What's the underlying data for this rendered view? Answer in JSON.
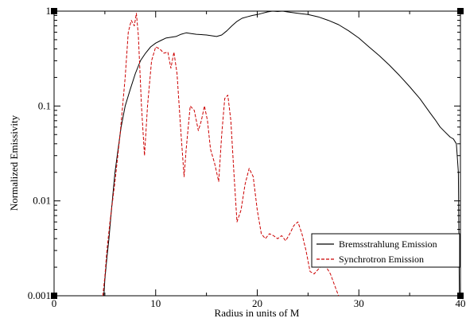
{
  "chart_data": {
    "type": "line",
    "title": "",
    "xlabel": "Radius in units of M",
    "ylabel": "Normalized Emissivity",
    "xlim": [
      0,
      40
    ],
    "ylim": [
      0.001,
      1
    ],
    "yscale": "log",
    "grid": false,
    "legend_position": "right",
    "x_ticks": [
      0,
      10,
      20,
      30,
      40
    ],
    "x_tick_labels": [
      "0",
      "10",
      "20",
      "30",
      "40"
    ],
    "y_ticks": [
      0.001,
      0.01,
      0.1,
      1
    ],
    "y_tick_labels": [
      "0.001",
      "0.01",
      "0.1",
      "1"
    ],
    "series": [
      {
        "name": "Bremsstrahlung Emission",
        "color": "#000000",
        "style": "solid",
        "x": [
          4.9,
          5.0,
          5.2,
          5.4,
          5.6,
          5.8,
          6.0,
          6.3,
          6.6,
          7.0,
          7.5,
          8.0,
          8.5,
          9.0,
          9.5,
          10.0,
          10.5,
          11.0,
          11.5,
          12.0,
          12.5,
          13.0,
          13.5,
          14.0,
          15.0,
          16.0,
          16.5,
          17.0,
          17.5,
          18.0,
          18.5,
          19.0,
          19.5,
          20.0,
          20.5,
          21.0,
          21.5,
          22.0,
          22.5,
          23.0,
          24.0,
          25.0,
          26.0,
          27.0,
          28.0,
          29.0,
          30.0,
          31.0,
          32.0,
          33.0,
          34.0,
          35.0,
          36.0,
          37.0,
          37.5,
          38.0,
          38.5,
          39.0,
          39.3,
          39.6,
          39.8,
          39.9
        ],
        "values": [
          0.001,
          0.0015,
          0.0025,
          0.004,
          0.007,
          0.012,
          0.02,
          0.035,
          0.06,
          0.1,
          0.15,
          0.22,
          0.3,
          0.36,
          0.42,
          0.46,
          0.49,
          0.52,
          0.53,
          0.54,
          0.57,
          0.59,
          0.58,
          0.57,
          0.56,
          0.54,
          0.56,
          0.62,
          0.7,
          0.78,
          0.84,
          0.87,
          0.9,
          0.92,
          0.95,
          0.98,
          1.0,
          0.99,
          1.0,
          0.98,
          0.95,
          0.92,
          0.87,
          0.8,
          0.72,
          0.62,
          0.52,
          0.42,
          0.34,
          0.27,
          0.21,
          0.16,
          0.12,
          0.085,
          0.072,
          0.06,
          0.053,
          0.047,
          0.045,
          0.04,
          0.02,
          0.001
        ]
      },
      {
        "name": "Synchrotron Emission",
        "color": "#cc0000",
        "style": "dashed",
        "x": [
          4.8,
          5.0,
          5.2,
          5.5,
          6.0,
          6.5,
          7.0,
          7.3,
          7.6,
          7.9,
          8.1,
          8.3,
          8.6,
          8.9,
          9.2,
          9.6,
          10.0,
          10.4,
          10.8,
          11.2,
          11.5,
          11.8,
          12.1,
          12.5,
          12.8,
          13.0,
          13.4,
          13.8,
          14.2,
          14.5,
          14.8,
          15.1,
          15.4,
          15.8,
          16.2,
          16.5,
          16.8,
          17.1,
          17.4,
          17.7,
          18.0,
          18.4,
          18.8,
          19.2,
          19.6,
          20.0,
          20.4,
          20.8,
          21.2,
          21.6,
          22.0,
          22.4,
          22.8,
          23.2,
          23.6,
          24.0,
          24.4,
          24.8,
          25.2,
          25.6,
          26.0,
          26.4,
          26.8,
          27.2,
          27.6,
          28.0
        ],
        "values": [
          0.001,
          0.0016,
          0.003,
          0.006,
          0.016,
          0.05,
          0.2,
          0.6,
          0.8,
          0.7,
          0.95,
          0.55,
          0.1,
          0.03,
          0.1,
          0.3,
          0.42,
          0.4,
          0.36,
          0.37,
          0.25,
          0.37,
          0.22,
          0.05,
          0.018,
          0.035,
          0.1,
          0.09,
          0.055,
          0.07,
          0.1,
          0.07,
          0.035,
          0.025,
          0.016,
          0.05,
          0.12,
          0.13,
          0.07,
          0.02,
          0.006,
          0.008,
          0.015,
          0.022,
          0.018,
          0.008,
          0.0045,
          0.004,
          0.0045,
          0.0043,
          0.004,
          0.0043,
          0.0038,
          0.0045,
          0.0055,
          0.006,
          0.0045,
          0.003,
          0.0018,
          0.0017,
          0.0019,
          0.0021,
          0.002,
          0.0017,
          0.0013,
          0.001
        ]
      }
    ]
  }
}
